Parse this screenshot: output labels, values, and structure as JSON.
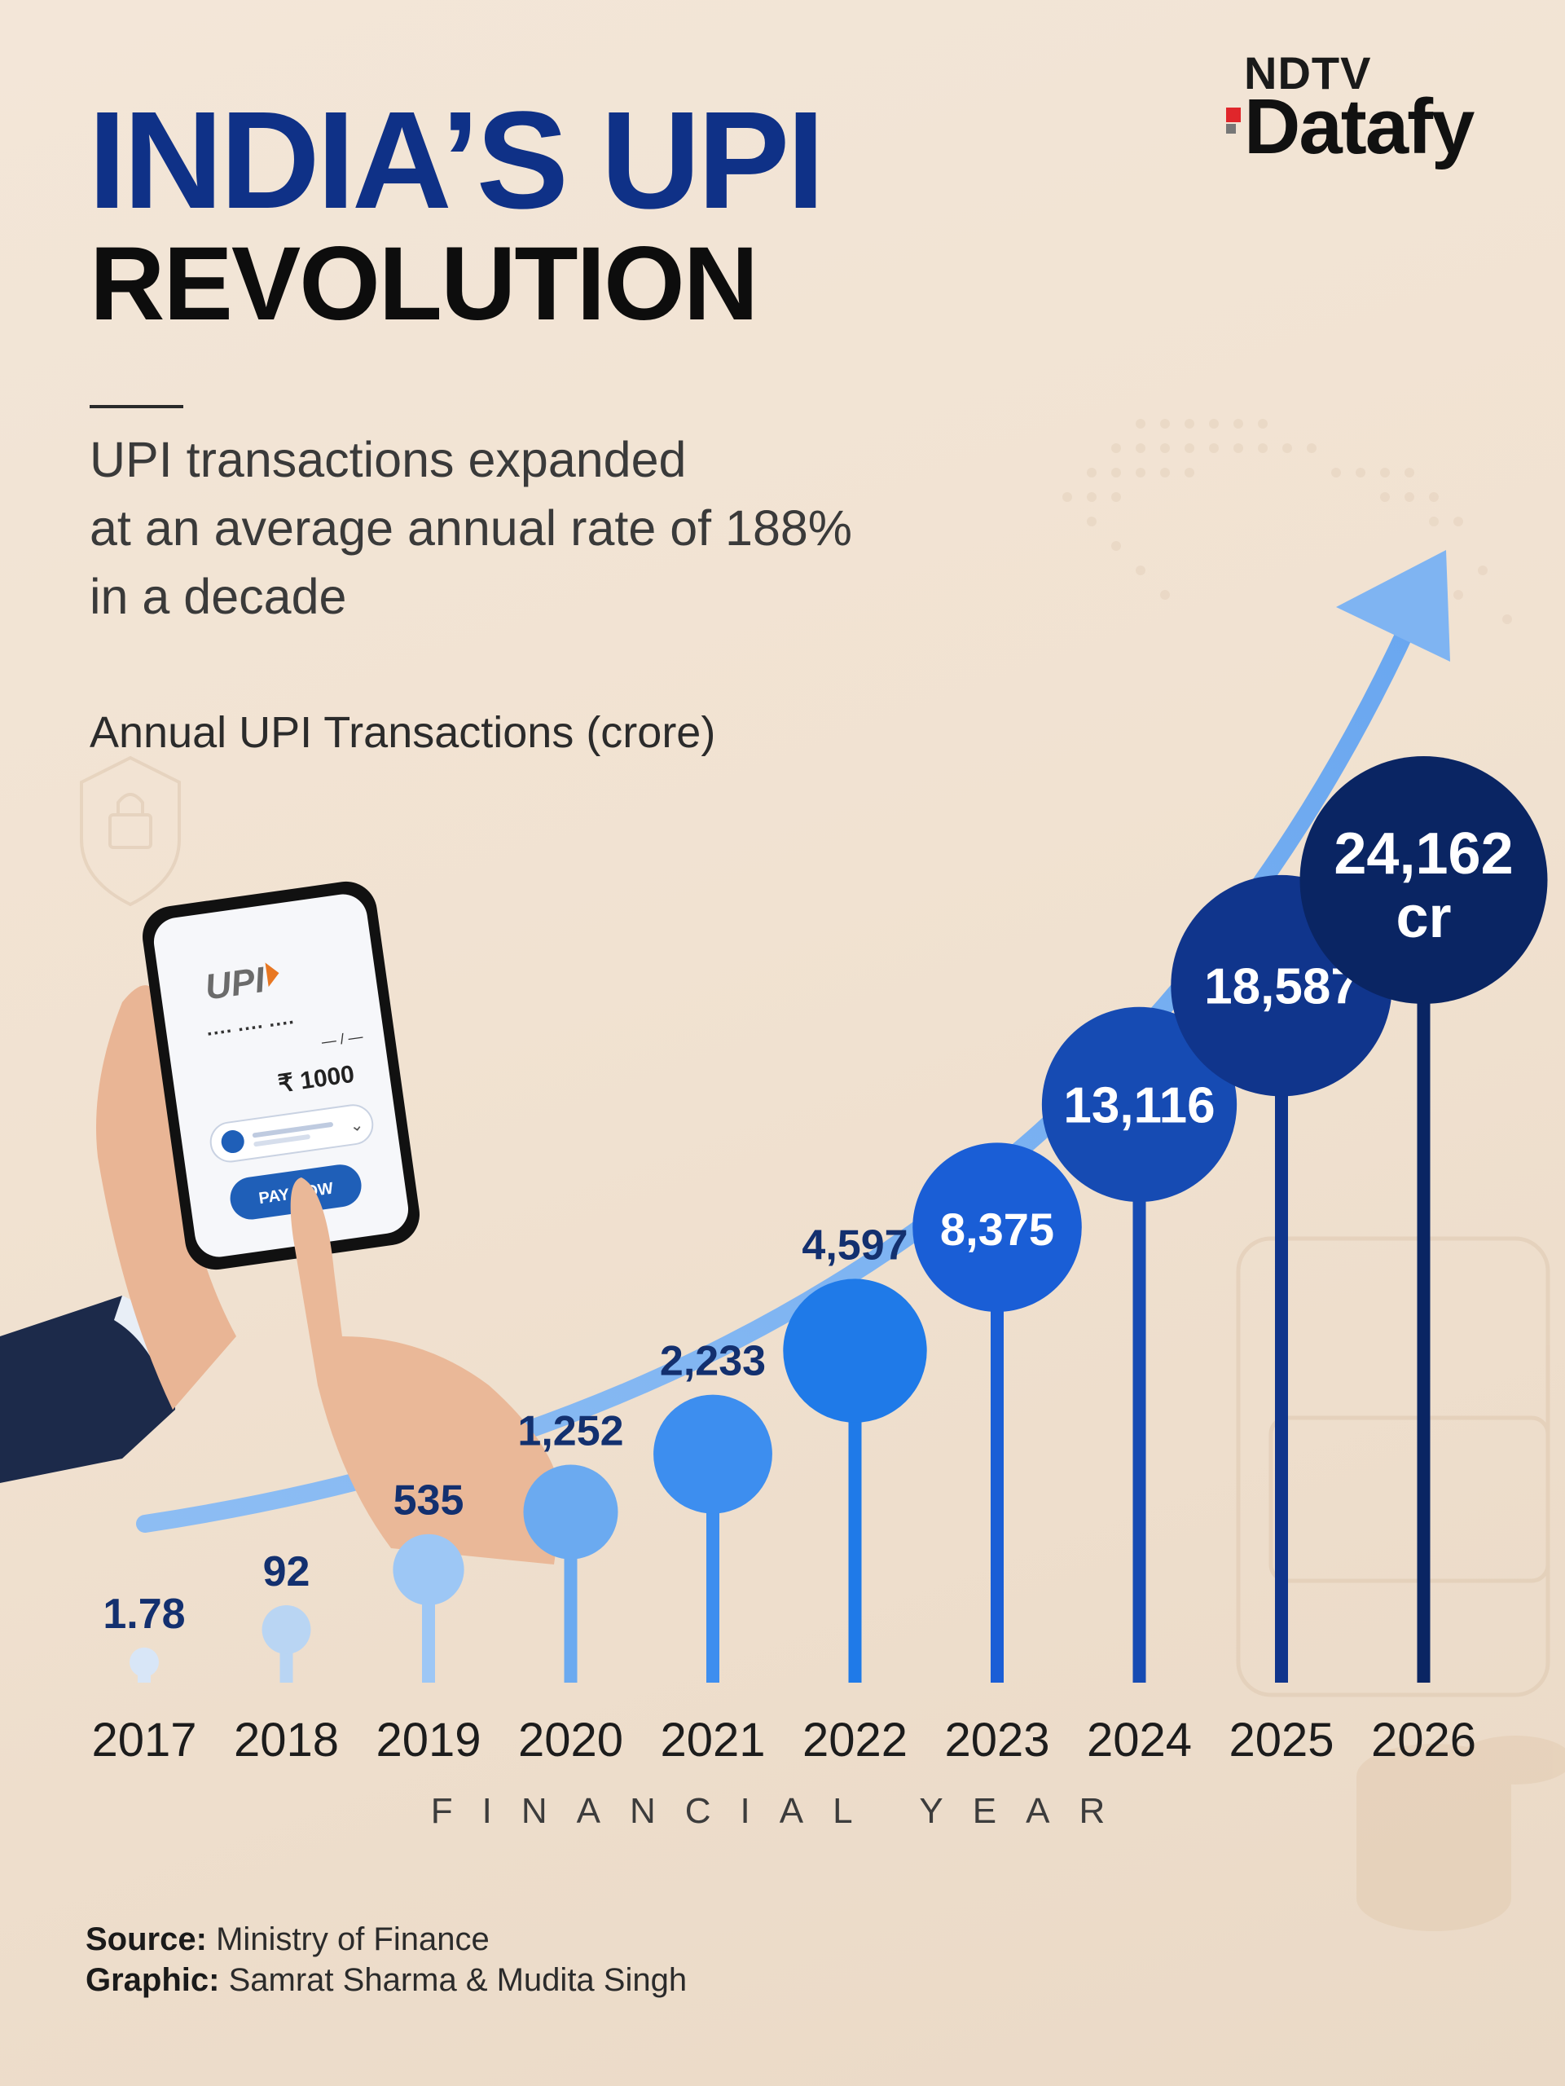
{
  "header": {
    "title_line1": "INDIA’S UPI",
    "title_line2": "REVOLUTION",
    "subtitle": "UPI transactions expanded\nat an average annual rate of 188%\nin a decade"
  },
  "logo": {
    "top": "NDTV",
    "main": "Datafy"
  },
  "phone": {
    "brand": "UPI",
    "mask": "····  ····  ····",
    "dash": "— / —",
    "amount": "₹ 1000",
    "button": "PAY NOW"
  },
  "chart_data": {
    "type": "lollipop",
    "title": "Annual UPI Transactions (crore)",
    "xlabel": "FINANCIAL YEAR",
    "categories": [
      "2017",
      "2018",
      "2019",
      "2020",
      "2021",
      "2022",
      "2023",
      "2024",
      "2025",
      "2026"
    ],
    "values": [
      1.78,
      92,
      535,
      1252,
      2233,
      4597,
      8375,
      13116,
      18587,
      24162
    ],
    "data_labels": [
      "1.78",
      "92",
      "535",
      "1,252",
      "2,233",
      "4,597",
      "8,375",
      "13,116",
      "18,587",
      "24,162"
    ],
    "last_label_unit": "cr",
    "colors": [
      "#d8e6f7",
      "#b9d5f3",
      "#9dc7f5",
      "#6baaf0",
      "#3d8eef",
      "#1f7ae8",
      "#1a5ed6",
      "#164bb3",
      "#10358c",
      "#0a2563"
    ],
    "trend_arrow_color": "#7fb4f2"
  },
  "footer": {
    "source_label": "Source:",
    "source_value": "Ministry of Finance",
    "graphic_label": "Graphic:",
    "graphic_value": "Samrat Sharma & Mudita Singh"
  }
}
